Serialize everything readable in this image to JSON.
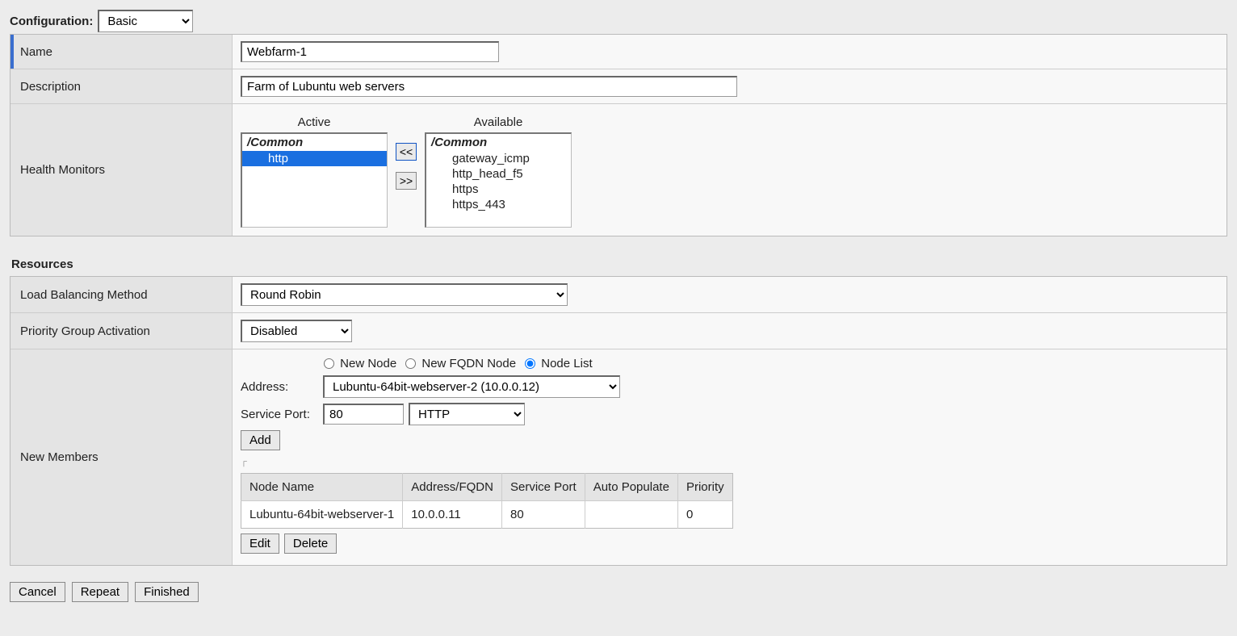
{
  "config": {
    "label": "Configuration:",
    "value": "Basic"
  },
  "general": {
    "name_label": "Name",
    "name_value": "Webfarm-1",
    "description_label": "Description",
    "description_value": "Farm of Lubuntu web servers",
    "hm_label": "Health Monitors"
  },
  "hm": {
    "active_header": "Active",
    "available_header": "Available",
    "group": "/Common",
    "active_items": [
      "http"
    ],
    "active_selected": 0,
    "available_items": [
      "gateway_icmp",
      "http_head_f5",
      "https",
      "https_443"
    ],
    "btn_left": "<<",
    "btn_right": ">>"
  },
  "resources": {
    "heading": "Resources",
    "lbm_label": "Load Balancing Method",
    "lbm_value": "Round Robin",
    "pga_label": "Priority Group Activation",
    "pga_value": "Disabled",
    "nm_label": "New Members"
  },
  "nm": {
    "radios": [
      {
        "label": "New Node",
        "checked": false
      },
      {
        "label": "New FQDN Node",
        "checked": false
      },
      {
        "label": "Node List",
        "checked": true
      }
    ],
    "address_label": "Address:",
    "address_value": "Lubuntu-64bit-webserver-2 (10.0.0.12)",
    "port_label": "Service Port:",
    "port_value": "80",
    "port_proto": "HTTP",
    "add_btn": "Add",
    "edit_btn": "Edit",
    "delete_btn": "Delete",
    "columns": [
      "Node Name",
      "Address/FQDN",
      "Service Port",
      "Auto Populate",
      "Priority"
    ],
    "rows": [
      [
        "Lubuntu-64bit-webserver-1",
        "10.0.0.11",
        "80",
        "",
        "0"
      ]
    ]
  },
  "footer": {
    "cancel": "Cancel",
    "repeat": "Repeat",
    "finished": "Finished"
  }
}
